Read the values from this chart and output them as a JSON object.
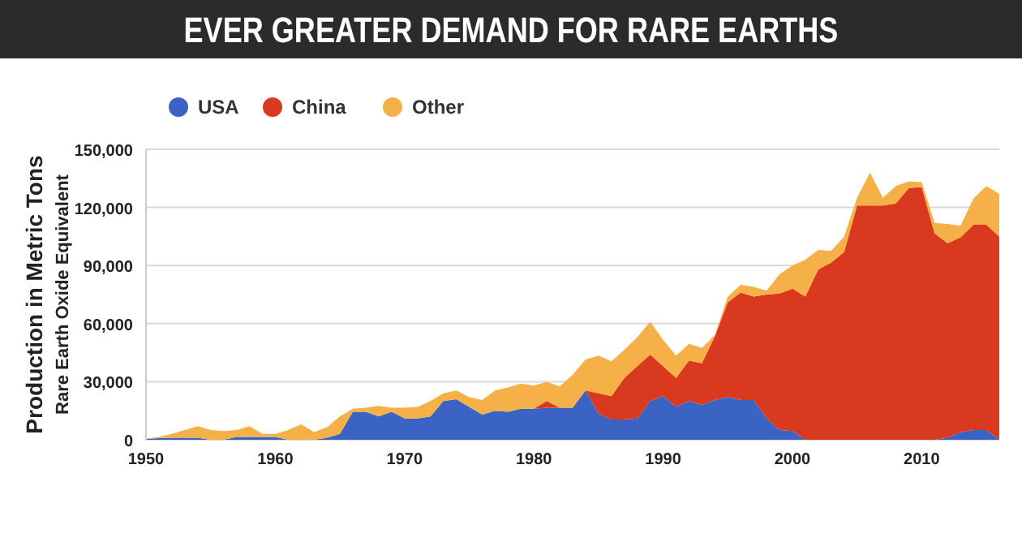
{
  "chart_data": {
    "type": "area",
    "stacked": true,
    "title": "EVER GREATER DEMAND FOR RARE EARTHS",
    "ylabel": "Production in Metric Tons\nRare Earth Oxide Equivalent",
    "x": [
      1950,
      1951,
      1952,
      1953,
      1954,
      1955,
      1956,
      1957,
      1958,
      1959,
      1960,
      1961,
      1962,
      1963,
      1964,
      1965,
      1966,
      1967,
      1968,
      1969,
      1970,
      1971,
      1972,
      1973,
      1974,
      1975,
      1976,
      1977,
      1978,
      1979,
      1980,
      1981,
      1982,
      1983,
      1984,
      1985,
      1986,
      1987,
      1988,
      1989,
      1990,
      1991,
      1992,
      1993,
      1994,
      1995,
      1996,
      1997,
      1998,
      1999,
      2000,
      2001,
      2002,
      2003,
      2004,
      2005,
      2006,
      2007,
      2008,
      2009,
      2010,
      2011,
      2012,
      2013,
      2014,
      2015,
      2016
    ],
    "series": [
      {
        "name": "USA",
        "color": "#3b63c4",
        "values": [
          500,
          800,
          1000,
          1000,
          1000,
          0,
          0,
          1500,
          1500,
          1500,
          1500,
          0,
          0,
          0,
          1000,
          3000,
          14500,
          14500,
          12000,
          14500,
          11000,
          11000,
          12000,
          20000,
          21000,
          17000,
          13000,
          15000,
          14500,
          16000,
          16000,
          16500,
          16500,
          16500,
          25500,
          13500,
          10500,
          10500,
          11000,
          20000,
          22500,
          17000,
          20000,
          18000,
          20500,
          22000,
          20500,
          20500,
          11000,
          5000,
          4500,
          0,
          0,
          0,
          0,
          0,
          0,
          0,
          0,
          0,
          0,
          0,
          1000,
          4000,
          5000,
          5000,
          0
        ]
      },
      {
        "name": "China",
        "color": "#d9391f",
        "values": [
          0,
          0,
          0,
          0,
          0,
          0,
          0,
          0,
          0,
          0,
          0,
          0,
          0,
          0,
          0,
          0,
          0,
          0,
          0,
          0,
          0,
          0,
          0,
          0,
          0,
          0,
          0,
          0,
          0,
          0,
          0,
          3500,
          0,
          0,
          0,
          10500,
          12000,
          21500,
          27000,
          24000,
          15500,
          15000,
          21000,
          21500,
          33000,
          49000,
          55500,
          53500,
          64000,
          70500,
          73500,
          74000,
          88000,
          91500,
          97000,
          121000,
          121000,
          121000,
          122000,
          130000,
          130500,
          106500,
          100500,
          100500,
          106000,
          106000,
          105000
        ]
      },
      {
        "name": "Other",
        "color": "#f5b147",
        "values": [
          0,
          700,
          2000,
          4000,
          6000,
          5000,
          4500,
          3500,
          5500,
          1500,
          1500,
          5000,
          8000,
          4000,
          5500,
          9000,
          1500,
          2000,
          5500,
          2000,
          5500,
          6000,
          8000,
          4000,
          4500,
          5000,
          7500,
          10500,
          12500,
          13000,
          12000,
          10000,
          11000,
          17000,
          16000,
          19500,
          18000,
          14500,
          15000,
          17000,
          13500,
          11500,
          8500,
          8000,
          500,
          3000,
          4000,
          5000,
          2000,
          10000,
          12000,
          19000,
          10000,
          6000,
          8000,
          4000,
          17000,
          4000,
          9000,
          3500,
          2500,
          5500,
          10000,
          6000,
          13500,
          20000,
          22000
        ]
      }
    ],
    "xlim": [
      1950,
      2016
    ],
    "xticks": [
      1950,
      1960,
      1970,
      1980,
      1990,
      2000,
      2010
    ],
    "ylim": [
      0,
      150000
    ],
    "yticks": [
      {
        "value": 0,
        "label": "0"
      },
      {
        "value": 30000,
        "label": "30,000"
      },
      {
        "value": 60000,
        "label": "60,000"
      },
      {
        "value": 90000,
        "label": "90,000"
      },
      {
        "value": 120000,
        "label": "120,000"
      },
      {
        "value": 150000,
        "label": "150,000"
      }
    ],
    "grid": "y",
    "legend": "top left"
  }
}
